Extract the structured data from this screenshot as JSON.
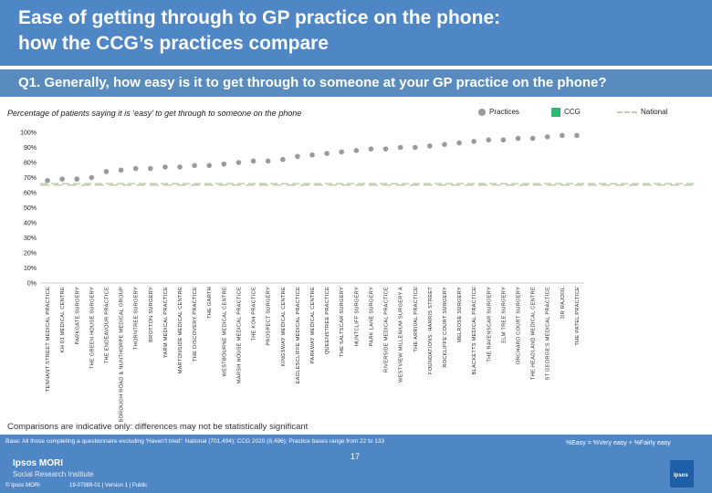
{
  "header": {
    "title_line1": "Ease of getting through to GP practice on the phone:",
    "title_line2": "how the CCG’s practices compare"
  },
  "question": "Q1. Generally, how easy is it to get through to someone at your GP practice on the phone?",
  "subtitle": "Percentage of patients saying it is ‘easy’ to get through to someone on the phone",
  "legend": {
    "practices": "Practices",
    "ccg": "CCG",
    "national": "National"
  },
  "colors": {
    "header_bg": "#4f86c6",
    "practice_dot": "#9a9a9a",
    "ccg_swatch": "#2eb872",
    "national_line": "#c9c9b0",
    "ccg_line": "#a8c8a0"
  },
  "chart_data": {
    "type": "scatter",
    "ylim": [
      0,
      100
    ],
    "y_ticks": [
      "0%",
      "10%",
      "20%",
      "30%",
      "40%",
      "50%",
      "60%",
      "70%",
      "80%",
      "90%",
      "100%"
    ],
    "categories": [
      "TENNANT STREET MEDICAL PRACTICE",
      "KH 03 MEDICAL CENTRE",
      "PARKGATE SURGERY",
      "THE GREEN HOUSE SURGERY",
      "THE ENDEAVOUR PRACTICE",
      "BOROUGH ROAD & NUNTHORPE MEDICAL GROUP",
      "THORNTREE SURGERY",
      "BROTTON SURGERY",
      "YARM MEDICAL PRACTICE",
      "MARTONSIDE MEDICAL CENTRE",
      "THE DISCOVERY PRACTICE",
      "THE GARTH",
      "WESTBOURNE MEDICAL CENTRE",
      "MARSH HOUSE MEDICAL PRACTICE",
      "THE KOH PRACTICE",
      "PROSPECT SURGERY",
      "KINGSWAY MEDICAL CENTRE",
      "EAGLESCLIFFE MEDICAL PRACTICE",
      "PARKWAY MEDICAL CENTRE",
      "QUEENSTREE PRACTICE",
      "THE SALTSCAR SURGERY",
      "HUNTCLIFF SURGERY",
      "PARK LANE SURGERY",
      "RIVERSIDE MEDICAL PRACTICE",
      "WESTVIEW MILLENIUM SURGERY A",
      "THE ARRIVAL PRACTICE",
      "FOUNDATIONS: HARRIS STREET",
      "ROCKLIFFE COURT SURGERY",
      "MELROSE SURGERY",
      "BLACKETTS MEDICAL PRACTICE",
      "THE RAVENSCAR SURGERY",
      "ELM TREE SURGERY",
      "ORCHARD COURT SURGERY",
      "THE HEADLAND MEDICAL CENTRE",
      "ST GEORGE'S MEDICAL PRACTICE",
      "DR RAJOOL",
      "THE PATEL PRACTICE"
    ],
    "series": [
      {
        "name": "Practices",
        "values": [
          68,
          69,
          69,
          70,
          74,
          75,
          76,
          76,
          77,
          77,
          78,
          78,
          79,
          80,
          81,
          81,
          82,
          84,
          85,
          86,
          87,
          88,
          89,
          89,
          90,
          90,
          91,
          92,
          93,
          94,
          95,
          95,
          96,
          96,
          97,
          98,
          98
        ]
      }
    ],
    "ccg_value": 66,
    "national_value": 65
  },
  "caveat": "Comparisons are indicative only: differences may not be statistically significant",
  "footer": {
    "base": "Base: All those completing a questionnaire excluding ‘Haven’t tried’: National (701,494); CCG 2020 (8,496); Practice bases range from 22 to 133",
    "easy_definition": "%Easy = %Very easy + %Fairly easy",
    "logo_line1": "Ipsos MORI",
    "logo_line2": "Social Research Institute",
    "copyright": "© Ipsos MORI",
    "job_ref": "19-07989-01 | Version 1 | Public",
    "page_number": "17",
    "ipsos_badge": "Ipsos"
  }
}
